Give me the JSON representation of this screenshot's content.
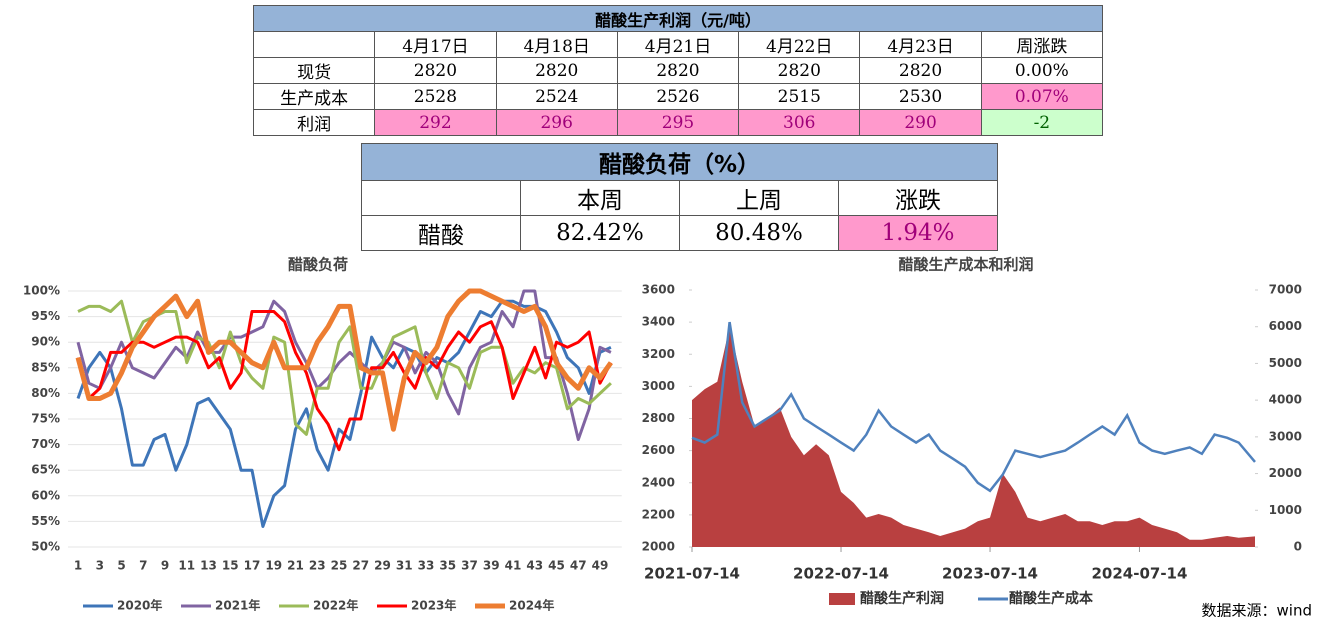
{
  "tables": [
    {
      "title": "醋酸生产利润（元/吨）",
      "columns": [
        "4月17日",
        "4月18日",
        "4月21日",
        "4月22日",
        "4月23日",
        "周涨跌"
      ],
      "rows": [
        {
          "label": "现货",
          "cells": [
            2820,
            2820,
            2820,
            2820,
            2820,
            "0.00%"
          ]
        },
        {
          "label": "生产成本",
          "cells": [
            2528,
            2524,
            2526,
            2515,
            2530,
            "0.07%"
          ]
        },
        {
          "label": "利润",
          "cells": [
            292,
            296,
            295,
            306,
            290,
            -2
          ]
        }
      ]
    },
    {
      "title": "醋酸负荷（%）",
      "columns": [
        "本周",
        "上周",
        "涨跌"
      ],
      "rows": [
        {
          "label": "醋酸",
          "cells": [
            "82.42%",
            "80.48%",
            "1.94%"
          ]
        }
      ]
    }
  ],
  "chart_data": [
    {
      "type": "line",
      "title": "醋酸负荷",
      "categories": [
        1,
        null,
        3,
        null,
        5,
        null,
        7,
        null,
        9,
        null,
        11,
        null,
        13,
        null,
        15,
        null,
        17,
        null,
        19,
        null,
        21,
        null,
        23,
        null,
        25,
        null,
        27,
        null,
        29,
        null,
        31,
        null,
        33,
        null,
        35,
        null,
        37,
        null,
        39,
        null,
        41,
        null,
        43,
        null,
        45,
        null,
        47,
        null,
        49,
        null
      ],
      "ylim": [
        50,
        100
      ],
      "yticks": [
        {
          "value": 50,
          "label": "50%"
        },
        {
          "value": 55,
          "label": "55%"
        },
        {
          "value": 60,
          "label": "60%"
        },
        {
          "value": 65,
          "label": "65%"
        },
        {
          "value": 70,
          "label": "70%"
        },
        {
          "value": 75,
          "label": "75%"
        },
        {
          "value": 80,
          "label": "80%"
        },
        {
          "value": 85,
          "label": "85%"
        },
        {
          "value": 90,
          "label": "90%"
        },
        {
          "value": 95,
          "label": "95%"
        },
        {
          "value": 100,
          "label": "100%"
        }
      ],
      "legend": "bottom",
      "series": [
        {
          "name": "2020年",
          "color": "#3e75b8",
          "width": 3,
          "values": [
            79,
            85,
            88,
            85,
            77,
            66,
            66,
            71,
            72,
            65,
            70,
            78,
            79,
            76,
            73,
            65,
            65,
            54,
            60,
            62,
            73,
            77,
            69,
            65,
            73,
            71,
            80,
            91,
            87,
            85,
            89,
            88,
            84,
            87,
            86,
            88,
            92,
            96,
            95,
            98,
            98,
            97,
            97,
            96,
            92,
            87,
            85,
            80,
            88,
            89
          ]
        },
        {
          "name": "2021年",
          "color": "#8064a2",
          "width": 3,
          "values": [
            90,
            82,
            81,
            85,
            90,
            85,
            84,
            83,
            86,
            89,
            87,
            92,
            88,
            88,
            91,
            91,
            92,
            93,
            98,
            96,
            90,
            86,
            81,
            83,
            86,
            88,
            86,
            84,
            86,
            90,
            89,
            84,
            88,
            86,
            80,
            76,
            85,
            89,
            90,
            96,
            93,
            100,
            100,
            87,
            87,
            80,
            71,
            77,
            89,
            88
          ]
        },
        {
          "name": "2022年",
          "color": "#9bbb59",
          "width": 3,
          "values": [
            96,
            97,
            97,
            96,
            98,
            90,
            94,
            95,
            96,
            96,
            86,
            91,
            90,
            85,
            92,
            86,
            83,
            81,
            91,
            90,
            74,
            72,
            81,
            81,
            90,
            93,
            81,
            81,
            86,
            91,
            92,
            93,
            84,
            79,
            86,
            85,
            81,
            88,
            89,
            89,
            82,
            85,
            84,
            86,
            85,
            77,
            79,
            78,
            80,
            82
          ]
        },
        {
          "name": "2023年",
          "color": "#ff0000",
          "width": 3,
          "values": [
            87,
            79,
            81,
            88,
            88,
            90,
            90,
            89,
            90,
            91,
            91,
            90,
            85,
            87,
            81,
            84,
            96,
            96,
            96,
            94,
            88,
            84,
            77,
            74,
            69,
            75,
            75,
            85,
            85,
            88,
            84,
            81,
            87,
            85,
            89,
            92,
            90,
            93,
            94,
            89,
            79,
            84,
            89,
            83,
            90,
            89,
            90,
            92,
            82,
            86
          ]
        },
        {
          "name": "2024年",
          "color": "#ed7d31",
          "width": 5,
          "values": [
            87,
            79,
            79,
            80,
            84,
            89,
            92,
            95,
            97,
            99,
            95,
            98,
            88,
            90,
            90,
            88,
            86,
            85,
            90,
            85,
            85,
            85,
            90,
            93,
            97,
            97,
            85,
            84,
            84,
            73,
            83,
            88,
            86,
            89,
            95,
            98,
            100,
            100,
            99,
            98,
            97,
            96,
            97,
            93,
            86,
            83,
            81,
            85,
            83,
            86
          ]
        }
      ]
    },
    {
      "type": "combo",
      "title": "醋酸生产成本和利润",
      "source": "数据来源：wind",
      "legend": "bottom",
      "x": [
        "2021-07-14",
        "2021-08-14",
        "2021-09-14",
        "2021-10-14",
        "2021-11-14",
        "2021-12-14",
        "2022-01-14",
        "2022-02-14",
        "2022-03-14",
        "2022-04-14",
        "2022-05-14",
        "2022-06-14",
        "2022-07-14",
        "2022-08-14",
        "2022-09-14",
        "2022-10-14",
        "2022-11-14",
        "2022-12-14",
        "2023-01-14",
        "2023-02-14",
        "2023-03-14",
        "2023-04-14",
        "2023-05-14",
        "2023-06-14",
        "2023-07-14",
        "2023-08-14",
        "2023-09-14",
        "2023-10-14",
        "2023-11-14",
        "2023-12-14",
        "2024-01-14",
        "2024-02-14",
        "2024-03-14",
        "2024-04-14",
        "2024-05-14",
        "2024-06-14",
        "2024-07-14",
        "2024-08-14",
        "2024-09-14",
        "2024-10-14",
        "2024-11-14",
        "2024-12-14",
        "2025-01-14",
        "2025-02-14",
        "2025-03-14",
        "2025-04-23"
      ],
      "xlim": [
        "2021-07-14",
        "2025-04-23"
      ],
      "xticks": [
        "2021-07-14",
        "2022-07-14",
        "2023-07-14",
        "2024-07-14"
      ],
      "ylim": [
        2000,
        3600
      ],
      "yticks": [
        2000,
        2200,
        2400,
        2600,
        2800,
        3000,
        3200,
        3400,
        3600
      ],
      "y2lim": [
        0,
        7000
      ],
      "y2ticks": [
        0,
        1000,
        2000,
        3000,
        4000,
        5000,
        6000,
        7000
      ],
      "series": [
        {
          "name": "醋酸生产利润",
          "type": "area",
          "axis": "y2",
          "color": "#b94040",
          "values": [
            4000,
            4300,
            4500,
            6000,
            4500,
            3300,
            3500,
            3800,
            3000,
            2500,
            2800,
            2500,
            1500,
            1200,
            800,
            900,
            800,
            600,
            500,
            400,
            300,
            400,
            500,
            700,
            800,
            2000,
            1500,
            800,
            700,
            800,
            900,
            700,
            700,
            600,
            700,
            700,
            800,
            600,
            500,
            400,
            200,
            200,
            250,
            300,
            250,
            290
          ]
        },
        {
          "name": "醋酸生产成本",
          "type": "line",
          "color": "#4f81bd",
          "values": [
            2680,
            2650,
            2700,
            3400,
            2900,
            2750,
            2800,
            2850,
            2950,
            2800,
            2750,
            2700,
            2650,
            2600,
            2700,
            2850,
            2750,
            2700,
            2650,
            2700,
            2600,
            2550,
            2500,
            2400,
            2350,
            2450,
            2600,
            2580,
            2560,
            2580,
            2600,
            2650,
            2700,
            2750,
            2700,
            2820,
            2650,
            2600,
            2580,
            2600,
            2620,
            2580,
            2700,
            2680,
            2650,
            2530
          ]
        }
      ]
    }
  ]
}
